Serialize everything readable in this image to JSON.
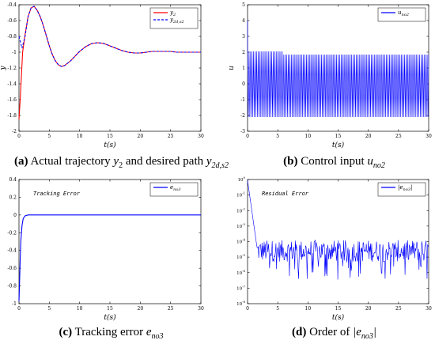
{
  "captions": {
    "a_tag": "(a)",
    "a_text": "Actual trajectory",
    "a_sym1": "y",
    "a_sub1": "2",
    "a_mid": "and desired path",
    "a_sym2": "y",
    "a_sub2": "2d,s2",
    "b_tag": "(b)",
    "b_text": "Control input",
    "b_sym": "u",
    "b_sub": "no2",
    "c_tag": "(c)",
    "c_text": "Tracking error",
    "c_sym": "e",
    "c_sub": "no3",
    "d_tag": "(d)",
    "d_text": "Order of",
    "d_sym": "|e",
    "d_sub": "no3",
    "d_end": "|"
  },
  "colors": {
    "red": "#ff0000",
    "blue": "#0000ff",
    "axis": "#000000"
  },
  "chart_data": [
    {
      "id": "a",
      "type": "line",
      "xlabel": "t(s)",
      "ylabel": "y",
      "xlim": [
        0,
        30
      ],
      "ylim": [
        -2,
        -0.4
      ],
      "xticks": [
        0,
        5,
        10,
        15,
        20,
        25,
        30
      ],
      "yticks": [
        -2,
        -1.8,
        -1.6,
        -1.4,
        -1.2,
        -1,
        -0.8,
        -0.6,
        -0.4
      ],
      "ytick_labels": [
        "-2",
        "-1.8",
        "-1.6",
        "-1.4",
        "-1.2",
        "-1",
        "-0.8",
        "-0.6",
        "-0.4"
      ],
      "legend": "top-right",
      "series": [
        {
          "name": "y2",
          "legend_sym": "y",
          "legend_sub": "2",
          "color": "#ff0000",
          "dash": false,
          "x": [
            0,
            0.2,
            0.4,
            0.6,
            1,
            1.5,
            2,
            2.5,
            3,
            3.5,
            4,
            4.5,
            5,
            5.5,
            6,
            6.5,
            7,
            7.5,
            8,
            8.5,
            9,
            10,
            11,
            12,
            13,
            14,
            15,
            16,
            17,
            18,
            19,
            20,
            21,
            22,
            23,
            24,
            25,
            26,
            27,
            28,
            29,
            30
          ],
          "y": [
            -1.85,
            -1.6,
            -1.3,
            -1.0,
            -0.78,
            -0.55,
            -0.44,
            -0.42,
            -0.47,
            -0.55,
            -0.66,
            -0.79,
            -0.92,
            -1.03,
            -1.11,
            -1.16,
            -1.18,
            -1.17,
            -1.14,
            -1.11,
            -1.07,
            -0.99,
            -0.93,
            -0.89,
            -0.88,
            -0.89,
            -0.92,
            -0.95,
            -0.98,
            -1.0,
            -1.01,
            -1.01,
            -1.0,
            -0.99,
            -0.99,
            -0.99,
            -0.99,
            -1.0,
            -1.0,
            -1.0,
            -1.0,
            -1.0
          ]
        },
        {
          "name": "y2d,s2",
          "legend_sym": "y",
          "legend_sub": "2d,s2",
          "color": "#0000ff",
          "dash": true,
          "x": [
            0,
            0.5,
            1,
            1.5,
            2,
            2.5,
            3,
            3.5,
            4,
            4.5,
            5,
            5.5,
            6,
            6.5,
            7,
            7.5,
            8,
            8.5,
            9,
            10,
            11,
            12,
            13,
            14,
            15,
            16,
            17,
            18,
            19,
            20,
            21,
            22,
            23,
            24,
            25,
            26,
            27,
            28,
            29,
            30
          ],
          "y": [
            -0.8,
            -0.95,
            -0.8,
            -0.55,
            -0.44,
            -0.42,
            -0.47,
            -0.55,
            -0.66,
            -0.79,
            -0.92,
            -1.03,
            -1.11,
            -1.16,
            -1.18,
            -1.17,
            -1.14,
            -1.11,
            -1.07,
            -0.99,
            -0.93,
            -0.89,
            -0.88,
            -0.89,
            -0.92,
            -0.95,
            -0.98,
            -1.0,
            -1.01,
            -1.01,
            -1.0,
            -0.99,
            -0.99,
            -0.99,
            -0.99,
            -1.0,
            -1.0,
            -1.0,
            -1.0,
            -1.0
          ]
        }
      ]
    },
    {
      "id": "b",
      "type": "line",
      "xlabel": "t(s)",
      "ylabel": "u",
      "xlim": [
        0,
        30
      ],
      "ylim": [
        -3,
        5
      ],
      "xticks": [
        0,
        5,
        10,
        15,
        20,
        25,
        30
      ],
      "yticks": [
        -3,
        -2,
        -1,
        0,
        1,
        2,
        3,
        4,
        5
      ],
      "ytick_labels": [
        "-3",
        "-2",
        "-1",
        "0",
        "1",
        "2",
        "3",
        "4",
        "5"
      ],
      "legend": "top-right",
      "series": [
        {
          "name": "uno2",
          "legend_sym": "u",
          "legend_sub": "no2",
          "color": "#0000ff",
          "oscillation": {
            "t_start": 0,
            "t_end": 30,
            "cycles": 120,
            "initial_peak": 4.0,
            "upper": 2.05,
            "lower": -2.1,
            "settled_upper": 1.85,
            "settled_lower": -2.1
          }
        }
      ]
    },
    {
      "id": "c",
      "type": "line",
      "xlabel": "t(s)",
      "ylabel": "",
      "xlim": [
        0,
        30
      ],
      "ylim": [
        -1,
        0.4
      ],
      "xticks": [
        0,
        5,
        10,
        15,
        20,
        25,
        30
      ],
      "yticks": [
        -1,
        -0.8,
        -0.6,
        -0.4,
        -0.2,
        0,
        0.2,
        0.4
      ],
      "ytick_labels": [
        "-1",
        "-0.8",
        "-0.6",
        "-0.4",
        "-0.2",
        "0",
        "0.2",
        "0.4"
      ],
      "legend": "top-right",
      "annotation": "Tracking Error",
      "series": [
        {
          "name": "eno3",
          "legend_sym": "e",
          "legend_sub": "no3",
          "color": "#0000ff",
          "x": [
            0,
            0.1,
            0.2,
            0.3,
            0.5,
            0.7,
            1,
            1.5,
            2,
            3,
            30
          ],
          "y": [
            -0.97,
            -0.75,
            -0.5,
            -0.3,
            -0.12,
            -0.04,
            -0.01,
            0,
            0,
            0,
            0
          ]
        }
      ]
    },
    {
      "id": "d",
      "type": "line",
      "yscale": "log",
      "xlabel": "t(s)",
      "ylabel": "",
      "xlim": [
        0,
        30
      ],
      "ylim_exp": [
        -8,
        0
      ],
      "xticks": [
        0,
        5,
        10,
        15,
        20,
        25,
        30
      ],
      "ytick_exps": [
        -8,
        -7,
        -6,
        -5,
        -4,
        -3,
        -2,
        -1,
        0
      ],
      "legend": "top-right",
      "annotation": "Residual Error",
      "series": [
        {
          "name": "|eno3|",
          "legend_sym": "|e",
          "legend_sub": "no3",
          "legend_end": "|",
          "color": "#0000ff",
          "decay": {
            "t0": 0,
            "exp0": -0.05,
            "t1": 1.5,
            "exp1": -4.2
          },
          "noise": {
            "t_start": 1.5,
            "t_end": 30,
            "mean_exp": -4.6,
            "high_exp": -3.6,
            "low_exp": -6.6,
            "points": 320
          }
        }
      ]
    }
  ]
}
